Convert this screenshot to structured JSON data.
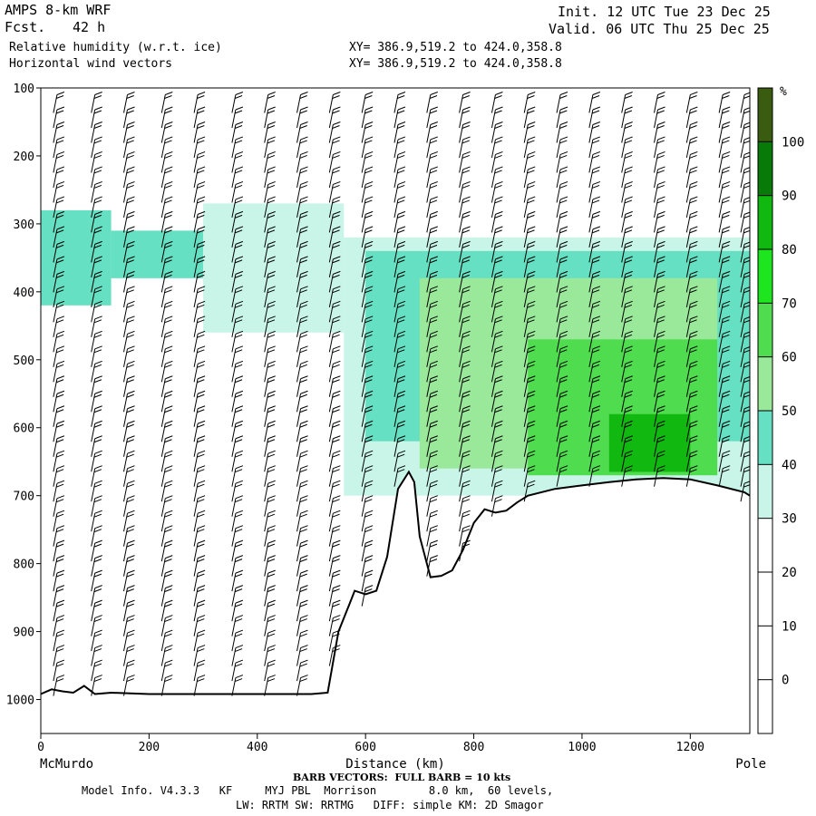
{
  "header": {
    "model": "AMPS 8-km WRF",
    "fcst_label": "Fcst.",
    "fcst_value": "42 h",
    "field1": "Relative humidity (w.r.t. ice)",
    "field2": "Horizontal wind vectors",
    "xy1": "XY= 386.9,519.2 to 424.0,358.8",
    "xy2": "XY= 386.9,519.2 to 424.0,358.8",
    "init": "Init. 12 UTC Tue 23 Dec 25",
    "valid": "Valid. 06 UTC Thu 25 Dec 25"
  },
  "footer": {
    "barb_note": "BARB VECTORS:  FULL BARB = 10 kts",
    "model_info_1": "Model Info. V4.3.3   KF     MYJ PBL  Morrison        8.0 km,  60 levels,",
    "model_info_2": "LW: RRTM SW: RRTMG   DIFF: simple KM: 2D Smagor"
  },
  "chart_data": {
    "type": "heatmap",
    "title": "Relative humidity (w.r.t. ice)",
    "xlabel": "Distance (km)",
    "ylabel": "",
    "x_endpoints": {
      "left": "McMurdo",
      "right": "Pole"
    },
    "xlim": [
      0,
      1310
    ],
    "ylim": [
      1050,
      100
    ],
    "x_ticks": [
      0,
      200,
      400,
      600,
      800,
      1000,
      1200
    ],
    "y_ticks": [
      100,
      200,
      300,
      400,
      500,
      600,
      700,
      800,
      900,
      1000
    ],
    "colorbar": {
      "unit": "%",
      "levels": [
        0,
        10,
        20,
        30,
        40,
        50,
        60,
        70,
        80,
        90,
        100
      ],
      "colors": [
        {
          "from": 30,
          "to": 40,
          "color": "#c8f5e8"
        },
        {
          "from": 40,
          "to": 50,
          "color": "#66e0c2"
        },
        {
          "from": 50,
          "to": 60,
          "color": "#9ae89a"
        },
        {
          "from": 60,
          "to": 70,
          "color": "#4fdc4f"
        },
        {
          "from": 70,
          "to": 80,
          "color": "#1ee61e"
        },
        {
          "from": 80,
          "to": 90,
          "color": "#10b810"
        },
        {
          "from": 90,
          "to": 100,
          "color": "#087a08"
        },
        {
          "from": 100,
          "to": 110,
          "color": "#3a5c10"
        }
      ]
    },
    "terrain": {
      "x": [
        0,
        20,
        40,
        60,
        80,
        100,
        130,
        200,
        300,
        400,
        500,
        530,
        550,
        570,
        580,
        600,
        620,
        640,
        660,
        680,
        690,
        700,
        720,
        740,
        760,
        780,
        800,
        820,
        840,
        860,
        880,
        900,
        950,
        1000,
        1050,
        1100,
        1150,
        1200,
        1250,
        1300,
        1310
      ],
      "pressure": [
        992,
        985,
        988,
        990,
        980,
        992,
        990,
        992,
        992,
        992,
        992,
        990,
        900,
        860,
        840,
        845,
        840,
        790,
        690,
        665,
        680,
        760,
        820,
        818,
        810,
        780,
        740,
        720,
        725,
        722,
        710,
        700,
        690,
        685,
        680,
        676,
        674,
        676,
        685,
        695,
        700
      ]
    },
    "rh_regions": [
      {
        "x0": 0,
        "x1": 130,
        "p0": 280,
        "p1": 420,
        "rh": 45
      },
      {
        "x0": 130,
        "x1": 300,
        "p0": 310,
        "p1": 380,
        "rh": 45
      },
      {
        "x0": 300,
        "x1": 560,
        "p0": 270,
        "p1": 460,
        "rh": 35
      },
      {
        "x0": 560,
        "x1": 1310,
        "p0": 320,
        "p1": 700,
        "rh": 35
      },
      {
        "x0": 600,
        "x1": 1310,
        "p0": 340,
        "p1": 620,
        "rh": 45
      },
      {
        "x0": 700,
        "x1": 1250,
        "p0": 380,
        "p1": 660,
        "rh": 55
      },
      {
        "x0": 900,
        "x1": 1250,
        "p0": 470,
        "p1": 670,
        "rh": 65
      },
      {
        "x0": 1050,
        "x1": 1200,
        "p0": 580,
        "p1": 665,
        "rh": 85
      }
    ],
    "barb_columns_x": [
      30,
      100,
      160,
      230,
      290,
      360,
      420,
      480,
      540,
      600,
      660,
      720,
      780,
      840,
      900,
      960,
      1020,
      1080,
      1140,
      1200,
      1260,
      1300
    ]
  }
}
